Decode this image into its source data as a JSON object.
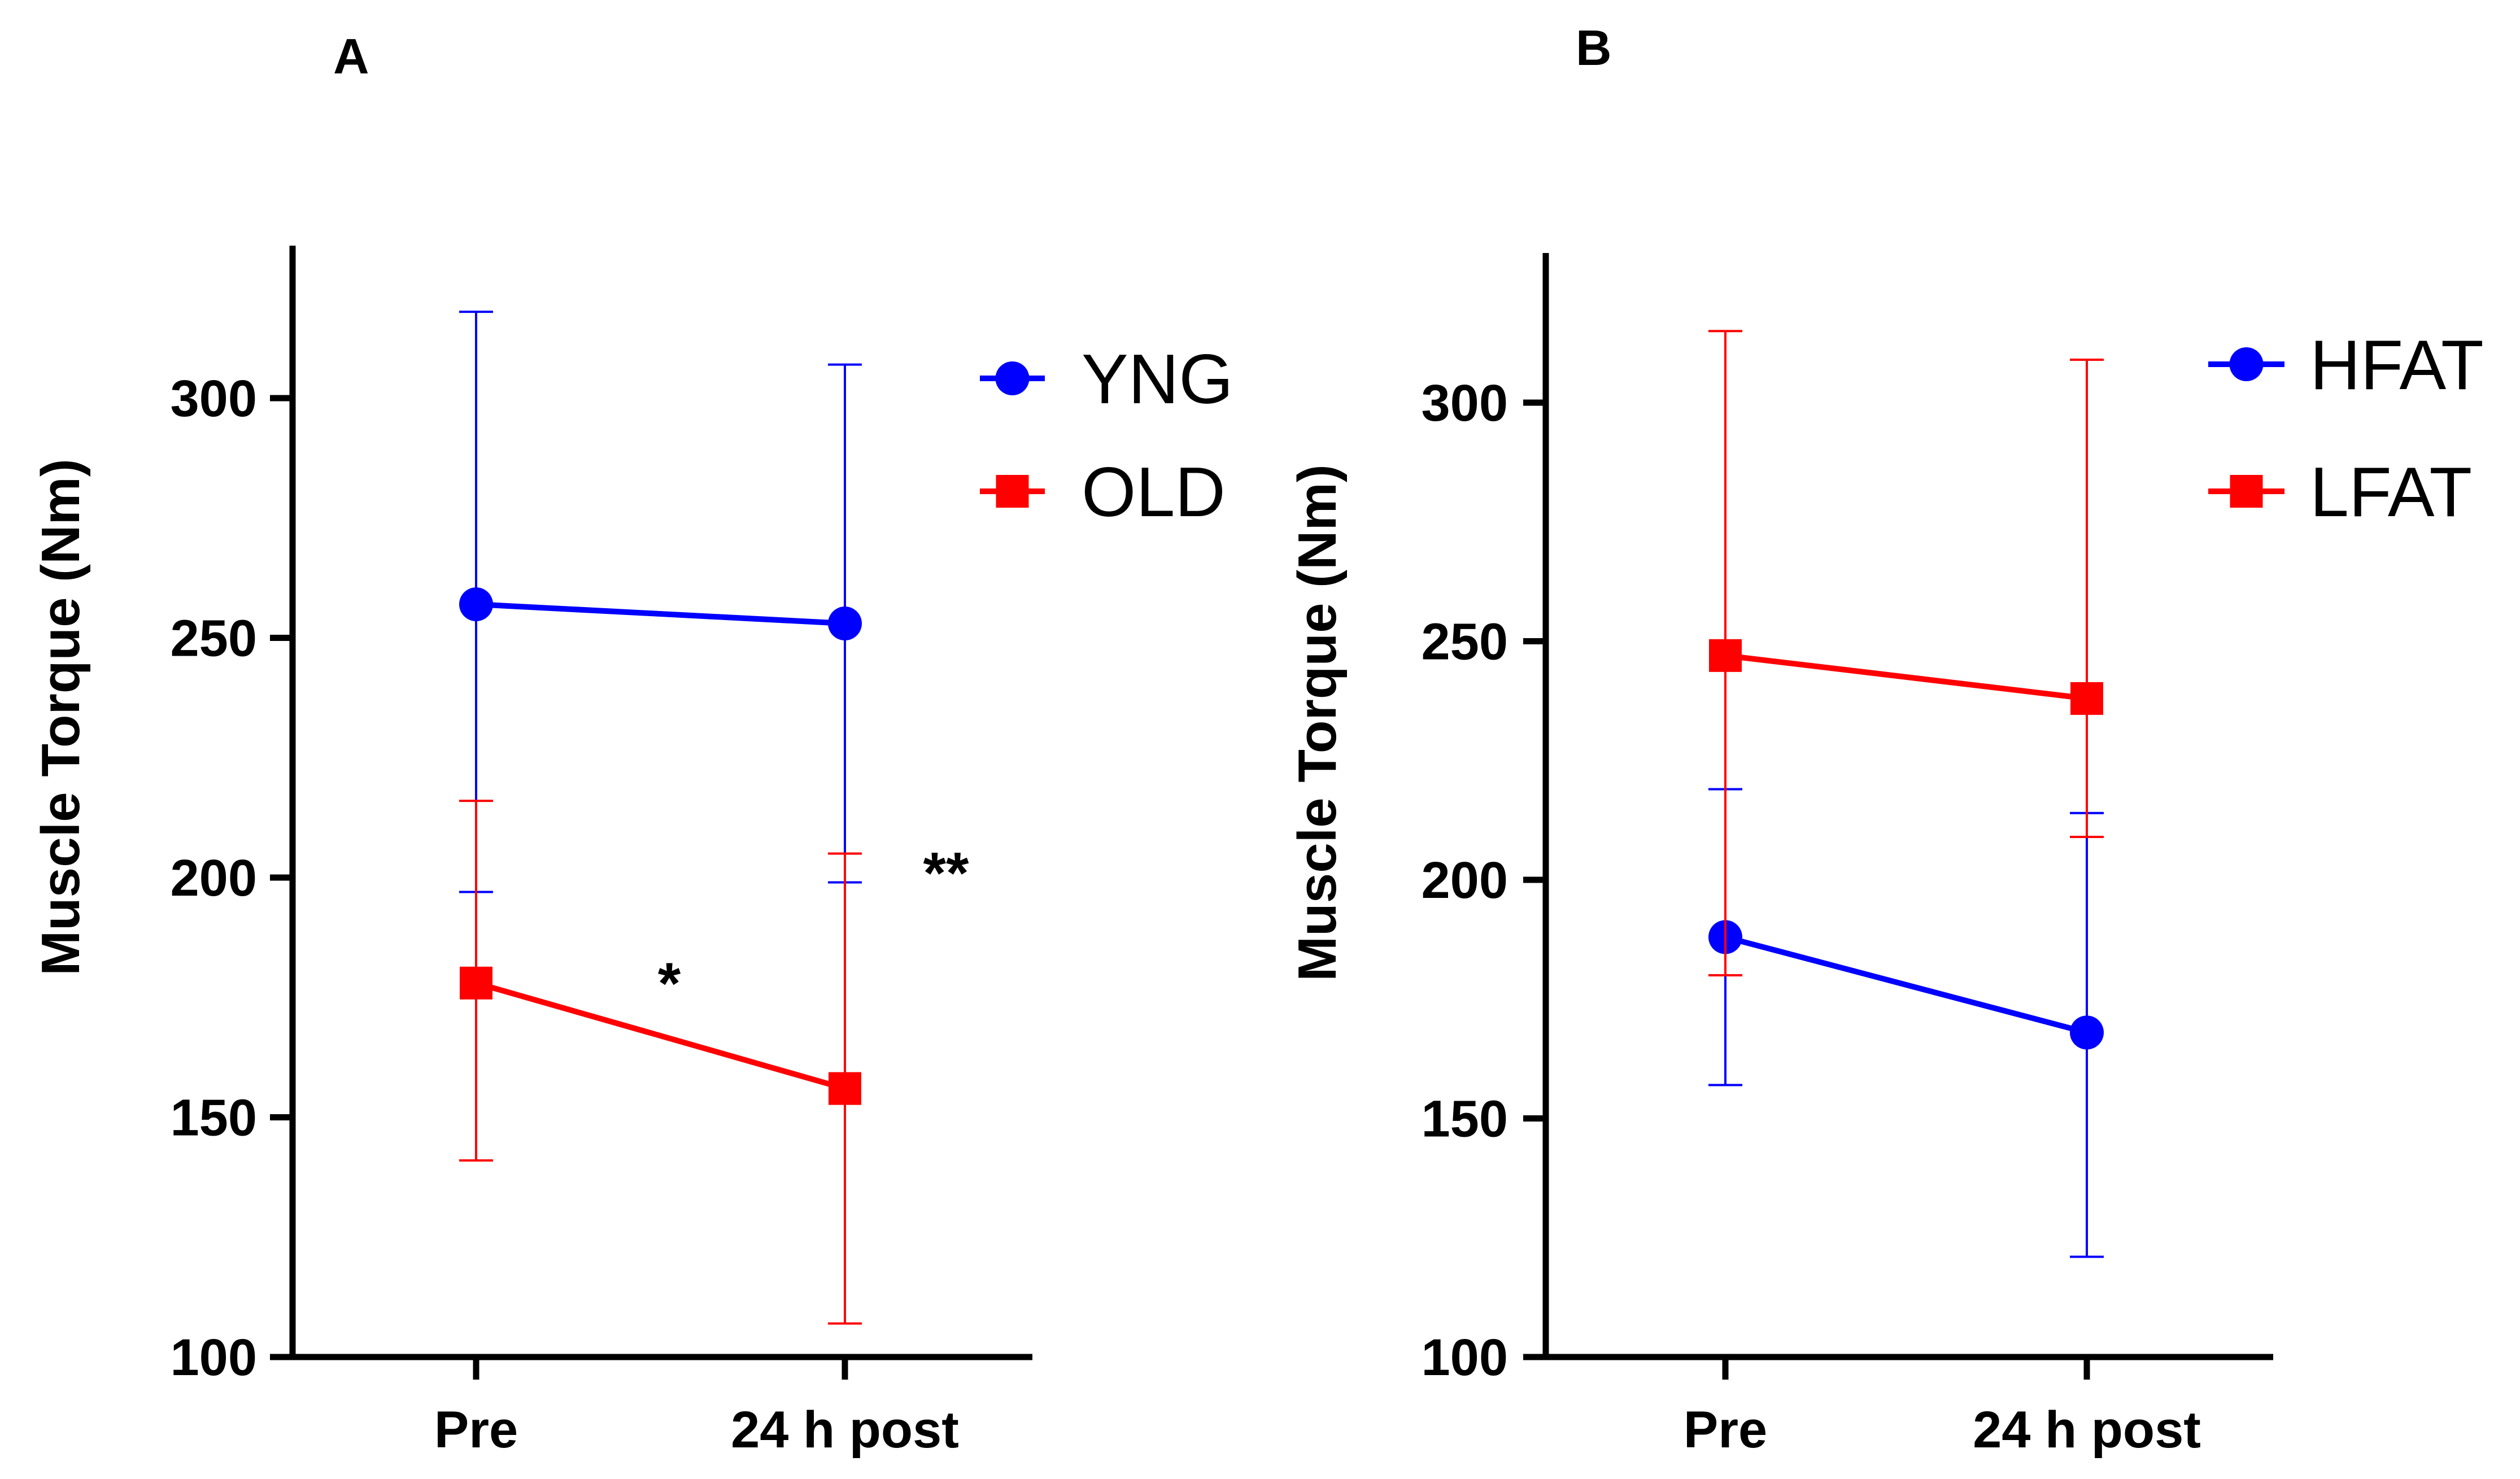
{
  "chart_data": [
    {
      "type": "line",
      "panel": "A",
      "title": "",
      "ylabel": "Muscle Torque (Nm)",
      "xlabel": "",
      "categories": [
        "Pre",
        "24 h post"
      ],
      "ylim": [
        100,
        330
      ],
      "yticks": [
        100,
        150,
        200,
        250,
        300
      ],
      "grid": false,
      "legend": "top-right",
      "series": [
        {
          "name": "YNG",
          "color": "#0000FF",
          "marker": "circle",
          "values": [
            257,
            253
          ],
          "err_low": [
            197,
            199
          ],
          "err_high": [
            318,
            307
          ]
        },
        {
          "name": "OLD",
          "color": "#FF0000",
          "marker": "square",
          "values": [
            178,
            156
          ],
          "err_low": [
            141,
            107
          ],
          "err_high": [
            216,
            205
          ]
        }
      ],
      "annotations": [
        {
          "text": "*",
          "between": [
            "Pre",
            "24 h post"
          ],
          "y": 182
        },
        {
          "text": "**",
          "near": "24 h post",
          "y": 205
        }
      ]
    },
    {
      "type": "line",
      "panel": "B",
      "title": "",
      "ylabel": "Muscle Torque (Nm)",
      "xlabel": "",
      "categories": [
        "Pre",
        "24 h post"
      ],
      "ylim": [
        100,
        330
      ],
      "yticks": [
        100,
        150,
        200,
        250,
        300
      ],
      "grid": false,
      "legend": "top-right",
      "series": [
        {
          "name": "HFAT",
          "color": "#0000FF",
          "marker": "circle",
          "values": [
            188,
            168
          ],
          "err_low": [
            157,
            121
          ],
          "err_high": [
            219,
            214
          ]
        },
        {
          "name": "LFAT",
          "color": "#FF0000",
          "marker": "square",
          "values": [
            247,
            238
          ],
          "err_low": [
            180,
            209
          ],
          "err_high": [
            315,
            309
          ]
        }
      ],
      "annotations": []
    }
  ]
}
